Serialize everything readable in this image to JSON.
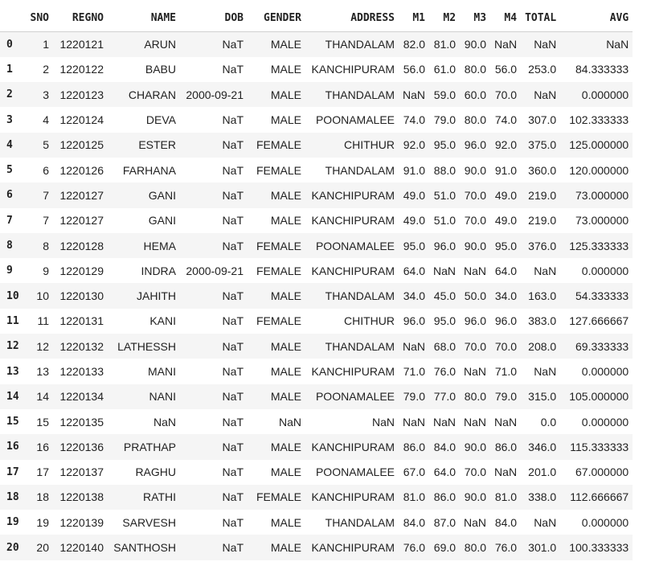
{
  "table": {
    "columns": [
      "SNO",
      "REGNO",
      "NAME",
      "DOB",
      "GENDER",
      "ADDRESS",
      "M1",
      "M2",
      "M3",
      "M4",
      "TOTAL",
      "AVG"
    ],
    "rows": [
      {
        "idx": "0",
        "cells": [
          "1",
          "1220121",
          "ARUN",
          "NaT",
          "MALE",
          "THANDALAM",
          "82.0",
          "81.0",
          "90.0",
          "NaN",
          "NaN",
          "NaN"
        ]
      },
      {
        "idx": "1",
        "cells": [
          "2",
          "1220122",
          "BABU",
          "NaT",
          "MALE",
          "KANCHIPURAM",
          "56.0",
          "61.0",
          "80.0",
          "56.0",
          "253.0",
          "84.333333"
        ]
      },
      {
        "idx": "2",
        "cells": [
          "3",
          "1220123",
          "CHARAN",
          "2000-09-21",
          "MALE",
          "THANDALAM",
          "NaN",
          "59.0",
          "60.0",
          "70.0",
          "NaN",
          "0.000000"
        ]
      },
      {
        "idx": "3",
        "cells": [
          "4",
          "1220124",
          "DEVA",
          "NaT",
          "MALE",
          "POONAMALEE",
          "74.0",
          "79.0",
          "80.0",
          "74.0",
          "307.0",
          "102.333333"
        ]
      },
      {
        "idx": "4",
        "cells": [
          "5",
          "1220125",
          "ESTER",
          "NaT",
          "FEMALE",
          "CHITHUR",
          "92.0",
          "95.0",
          "96.0",
          "92.0",
          "375.0",
          "125.000000"
        ]
      },
      {
        "idx": "5",
        "cells": [
          "6",
          "1220126",
          "FARHANA",
          "NaT",
          "FEMALE",
          "THANDALAM",
          "91.0",
          "88.0",
          "90.0",
          "91.0",
          "360.0",
          "120.000000"
        ]
      },
      {
        "idx": "6",
        "cells": [
          "7",
          "1220127",
          "GANI",
          "NaT",
          "MALE",
          "KANCHIPURAM",
          "49.0",
          "51.0",
          "70.0",
          "49.0",
          "219.0",
          "73.000000"
        ]
      },
      {
        "idx": "7",
        "cells": [
          "7",
          "1220127",
          "GANI",
          "NaT",
          "MALE",
          "KANCHIPURAM",
          "49.0",
          "51.0",
          "70.0",
          "49.0",
          "219.0",
          "73.000000"
        ]
      },
      {
        "idx": "8",
        "cells": [
          "8",
          "1220128",
          "HEMA",
          "NaT",
          "FEMALE",
          "POONAMALEE",
          "95.0",
          "96.0",
          "90.0",
          "95.0",
          "376.0",
          "125.333333"
        ]
      },
      {
        "idx": "9",
        "cells": [
          "9",
          "1220129",
          "INDRA",
          "2000-09-21",
          "FEMALE",
          "KANCHIPURAM",
          "64.0",
          "NaN",
          "NaN",
          "64.0",
          "NaN",
          "0.000000"
        ]
      },
      {
        "idx": "10",
        "cells": [
          "10",
          "1220130",
          "JAHITH",
          "NaT",
          "MALE",
          "THANDALAM",
          "34.0",
          "45.0",
          "50.0",
          "34.0",
          "163.0",
          "54.333333"
        ]
      },
      {
        "idx": "11",
        "cells": [
          "11",
          "1220131",
          "KANI",
          "NaT",
          "FEMALE",
          "CHITHUR",
          "96.0",
          "95.0",
          "96.0",
          "96.0",
          "383.0",
          "127.666667"
        ]
      },
      {
        "idx": "12",
        "cells": [
          "12",
          "1220132",
          "LATHESSH",
          "NaT",
          "MALE",
          "THANDALAM",
          "NaN",
          "68.0",
          "70.0",
          "70.0",
          "208.0",
          "69.333333"
        ]
      },
      {
        "idx": "13",
        "cells": [
          "13",
          "1220133",
          "MANI",
          "NaT",
          "MALE",
          "KANCHIPURAM",
          "71.0",
          "76.0",
          "NaN",
          "71.0",
          "NaN",
          "0.000000"
        ]
      },
      {
        "idx": "14",
        "cells": [
          "14",
          "1220134",
          "NANI",
          "NaT",
          "MALE",
          "POONAMALEE",
          "79.0",
          "77.0",
          "80.0",
          "79.0",
          "315.0",
          "105.000000"
        ]
      },
      {
        "idx": "15",
        "cells": [
          "15",
          "1220135",
          "NaN",
          "NaT",
          "NaN",
          "NaN",
          "NaN",
          "NaN",
          "NaN",
          "NaN",
          "0.0",
          "0.000000"
        ]
      },
      {
        "idx": "16",
        "cells": [
          "16",
          "1220136",
          "PRATHAP",
          "NaT",
          "MALE",
          "KANCHIPURAM",
          "86.0",
          "84.0",
          "90.0",
          "86.0",
          "346.0",
          "115.333333"
        ]
      },
      {
        "idx": "17",
        "cells": [
          "17",
          "1220137",
          "RAGHU",
          "NaT",
          "MALE",
          "POONAMALEE",
          "67.0",
          "64.0",
          "70.0",
          "NaN",
          "201.0",
          "67.000000"
        ]
      },
      {
        "idx": "18",
        "cells": [
          "18",
          "1220138",
          "RATHI",
          "NaT",
          "FEMALE",
          "KANCHIPURAM",
          "81.0",
          "86.0",
          "90.0",
          "81.0",
          "338.0",
          "112.666667"
        ]
      },
      {
        "idx": "19",
        "cells": [
          "19",
          "1220139",
          "SARVESH",
          "NaT",
          "MALE",
          "THANDALAM",
          "84.0",
          "87.0",
          "NaN",
          "84.0",
          "NaN",
          "0.000000"
        ]
      },
      {
        "idx": "20",
        "cells": [
          "20",
          "1220140",
          "SANTHOSH",
          "NaT",
          "MALE",
          "KANCHIPURAM",
          "76.0",
          "69.0",
          "80.0",
          "76.0",
          "301.0",
          "100.333333"
        ]
      }
    ]
  }
}
